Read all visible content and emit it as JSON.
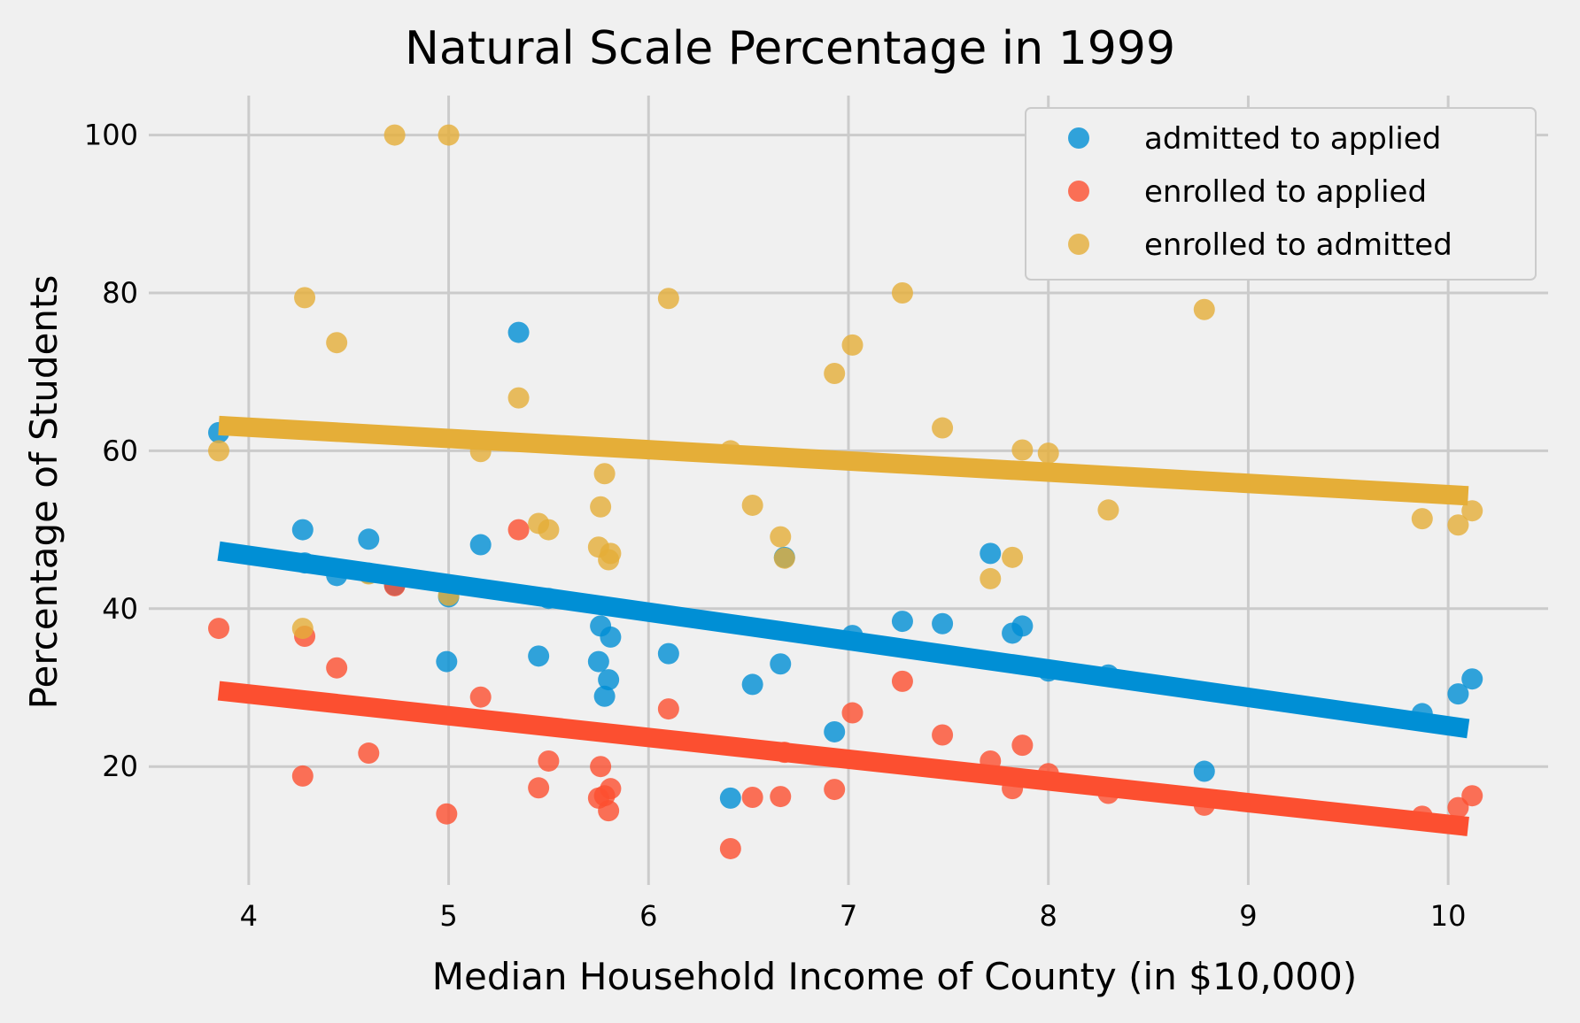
{
  "chart_data": {
    "type": "scatter",
    "title": "Natural Scale Percentage in 1999",
    "xlabel": "Median Household Income of County (in $10,000)",
    "ylabel": "Percentage of Students",
    "xlim": [
      3.5,
      10.5
    ],
    "ylim": [
      5,
      105
    ],
    "xticks": [
      4,
      5,
      6,
      7,
      8,
      9,
      10
    ],
    "yticks": [
      20,
      40,
      60,
      80,
      100
    ],
    "grid": true,
    "legend_position": "top-right",
    "series": [
      {
        "name": "admitted to applied",
        "color": "#008fd5",
        "points": [
          [
            3.85,
            62.3
          ],
          [
            4.27,
            50.0
          ],
          [
            4.28,
            45.8
          ],
          [
            4.44,
            44.2
          ],
          [
            4.6,
            48.8
          ],
          [
            4.6,
            44.5
          ],
          [
            4.73,
            43.0
          ],
          [
            4.99,
            33.3
          ],
          [
            5.0,
            41.5
          ],
          [
            5.16,
            48.1
          ],
          [
            5.35,
            75.0
          ],
          [
            5.45,
            34.0
          ],
          [
            5.5,
            41.3
          ],
          [
            5.75,
            33.3
          ],
          [
            5.76,
            37.8
          ],
          [
            5.78,
            28.9
          ],
          [
            5.8,
            31.0
          ],
          [
            5.81,
            36.4
          ],
          [
            6.1,
            34.3
          ],
          [
            6.41,
            16.0
          ],
          [
            6.52,
            30.4
          ],
          [
            6.66,
            33.0
          ],
          [
            6.68,
            46.5
          ],
          [
            6.93,
            24.4
          ],
          [
            7.02,
            36.6
          ],
          [
            7.27,
            38.4
          ],
          [
            7.47,
            38.1
          ],
          [
            7.71,
            47.0
          ],
          [
            7.82,
            36.9
          ],
          [
            7.87,
            37.8
          ],
          [
            8.0,
            32.1
          ],
          [
            8.3,
            31.6
          ],
          [
            8.78,
            19.4
          ],
          [
            9.87,
            26.7
          ],
          [
            10.05,
            29.2
          ],
          [
            10.12,
            31.1
          ]
        ],
        "fit": [
          [
            3.85,
            47.3
          ],
          [
            10.1,
            24.8
          ]
        ]
      },
      {
        "name": "enrolled to applied",
        "color": "#fc4f30",
        "points": [
          [
            3.85,
            37.5
          ],
          [
            4.27,
            18.8
          ],
          [
            4.28,
            36.5
          ],
          [
            4.44,
            32.5
          ],
          [
            4.6,
            21.7
          ],
          [
            4.73,
            42.9
          ],
          [
            4.99,
            14.0
          ],
          [
            5.16,
            28.8
          ],
          [
            5.35,
            50.0
          ],
          [
            5.45,
            17.3
          ],
          [
            5.5,
            20.7
          ],
          [
            5.75,
            16.0
          ],
          [
            5.76,
            20.0
          ],
          [
            5.78,
            16.3
          ],
          [
            5.8,
            14.4
          ],
          [
            5.81,
            17.2
          ],
          [
            6.1,
            27.3
          ],
          [
            6.41,
            9.6
          ],
          [
            6.52,
            16.1
          ],
          [
            6.66,
            16.2
          ],
          [
            6.68,
            21.8
          ],
          [
            6.93,
            17.1
          ],
          [
            7.02,
            26.8
          ],
          [
            7.27,
            30.8
          ],
          [
            7.47,
            24.0
          ],
          [
            7.71,
            20.7
          ],
          [
            7.82,
            17.2
          ],
          [
            7.87,
            22.7
          ],
          [
            8.0,
            19.1
          ],
          [
            8.3,
            16.6
          ],
          [
            8.78,
            15.1
          ],
          [
            9.87,
            13.7
          ],
          [
            10.05,
            14.8
          ],
          [
            10.12,
            16.3
          ]
        ],
        "fit": [
          [
            3.85,
            29.6
          ],
          [
            10.1,
            12.4
          ]
        ]
      },
      {
        "name": "enrolled to admitted",
        "color": "#e5ae38",
        "points": [
          [
            3.85,
            60.0
          ],
          [
            4.27,
            37.5
          ],
          [
            4.28,
            79.4
          ],
          [
            4.44,
            73.7
          ],
          [
            4.6,
            44.4
          ],
          [
            4.73,
            100.0
          ],
          [
            5.0,
            100.0
          ],
          [
            5.0,
            41.7
          ],
          [
            5.16,
            59.9
          ],
          [
            5.35,
            66.7
          ],
          [
            5.45,
            50.8
          ],
          [
            5.5,
            50.0
          ],
          [
            5.75,
            47.8
          ],
          [
            5.76,
            52.9
          ],
          [
            5.78,
            57.1
          ],
          [
            5.8,
            46.2
          ],
          [
            5.81,
            47.0
          ],
          [
            6.1,
            79.3
          ],
          [
            6.41,
            60.0
          ],
          [
            6.52,
            53.1
          ],
          [
            6.66,
            49.1
          ],
          [
            6.68,
            46.4
          ],
          [
            6.93,
            69.8
          ],
          [
            7.02,
            73.4
          ],
          [
            7.27,
            80.0
          ],
          [
            7.47,
            62.9
          ],
          [
            7.71,
            43.8
          ],
          [
            7.82,
            46.5
          ],
          [
            7.87,
            60.1
          ],
          [
            8.0,
            59.7
          ],
          [
            8.3,
            52.5
          ],
          [
            8.78,
            77.9
          ],
          [
            9.87,
            51.4
          ],
          [
            10.05,
            50.6
          ],
          [
            10.12,
            52.4
          ]
        ],
        "fit": [
          [
            3.85,
            63.2
          ],
          [
            10.1,
            54.3
          ]
        ]
      }
    ]
  }
}
